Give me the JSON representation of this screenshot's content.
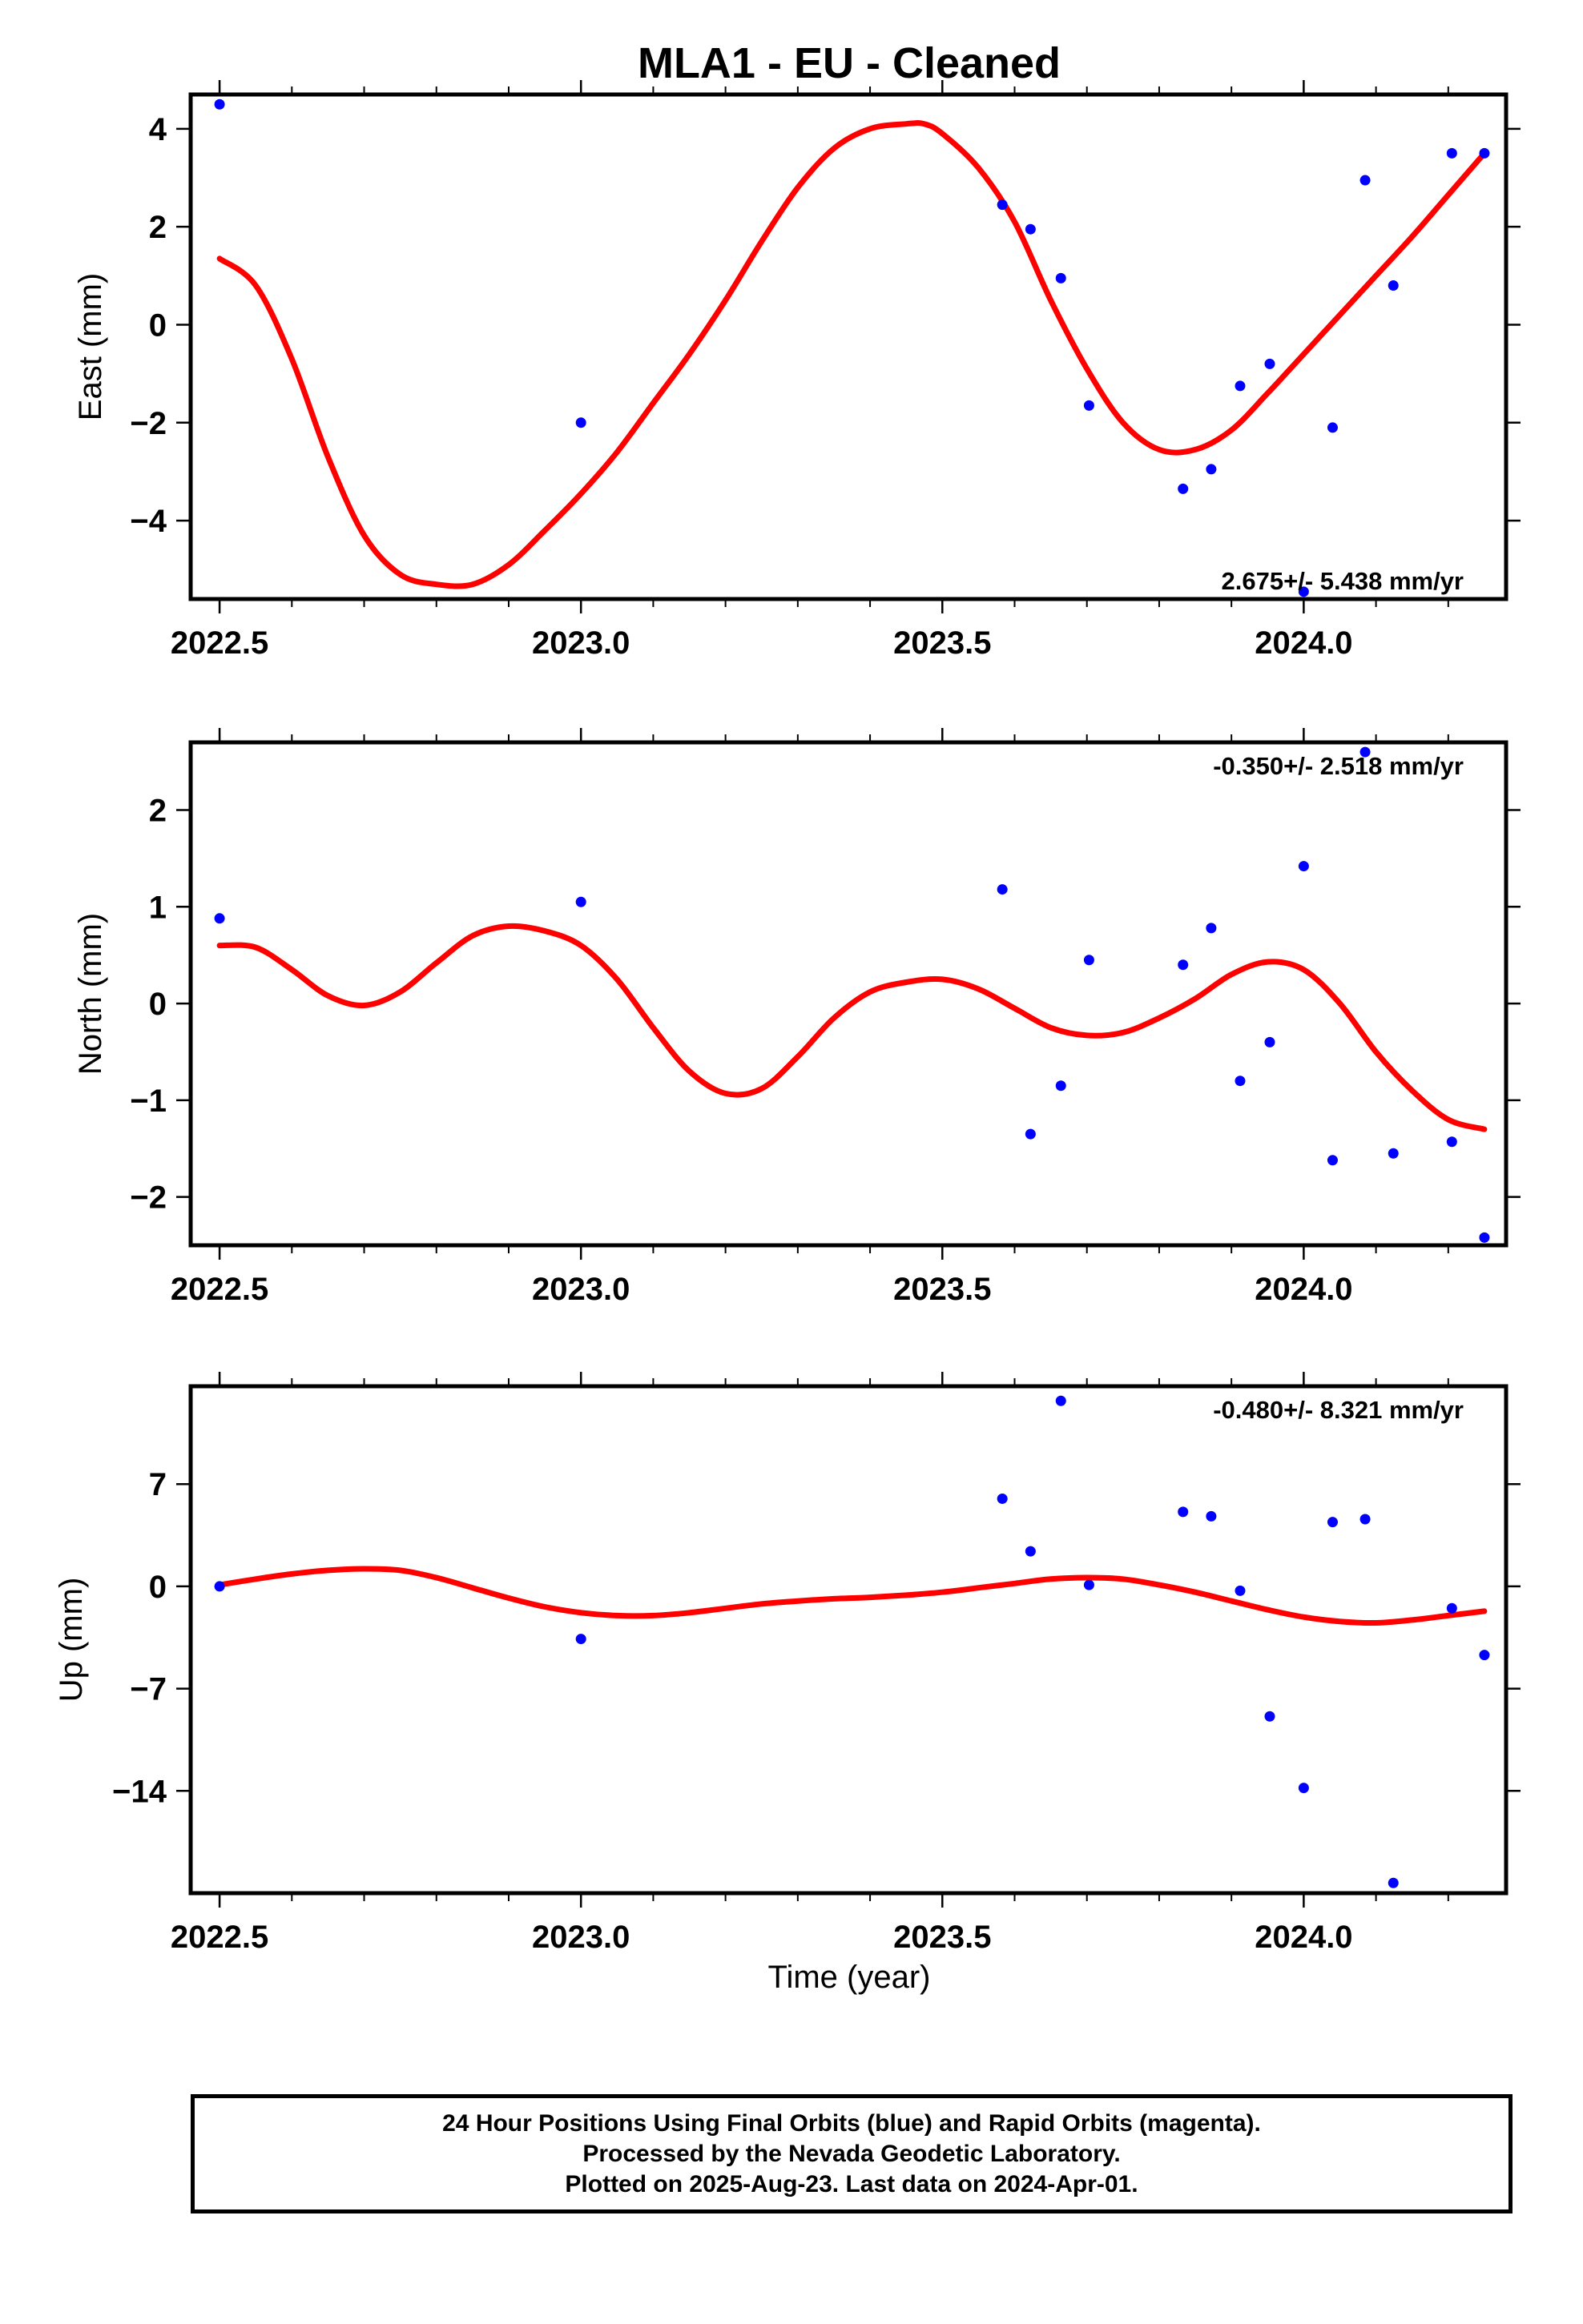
{
  "title": "MLA1  - EU - Cleaned",
  "xlabel": "Time (year)",
  "footer": {
    "lines": [
      "24 Hour Positions Using Final Orbits (blue) and Rapid Orbits (magenta).",
      "Processed by the Nevada Geodetic Laboratory.",
      "Plotted on 2025-Aug-23. Last data on 2024-Apr-01."
    ]
  },
  "colors": {
    "points": "#0000ff",
    "fit": "#ff0000",
    "frame": "#000000"
  },
  "chart_data": [
    {
      "type": "scatter",
      "name": "east",
      "ylabel": "East (mm)",
      "rate_text": "2.675+/- 5.438 mm/yr",
      "rate_position": "bottom-right",
      "xlim": [
        2022.46,
        2024.28
      ],
      "ylim": [
        -5.6,
        4.7
      ],
      "xticks": [
        2022.5,
        2023.0,
        2023.5,
        2024.0
      ],
      "xtick_labels": [
        "2022.5",
        "2023.0",
        "2023.5",
        "2024.0"
      ],
      "yticks": [
        4,
        2,
        0,
        -2,
        -4
      ],
      "ytick_labels": [
        "4",
        "2",
        "0",
        "−2",
        "−4"
      ],
      "grid": false,
      "points": {
        "x": [
          2022.5,
          2023.0,
          2023.583,
          2023.622,
          2023.664,
          2023.703,
          2023.833,
          2023.872,
          2023.912,
          2023.953,
          2024.0,
          2024.04,
          2024.085,
          2024.124,
          2024.205,
          2024.25
        ],
        "y": [
          4.5,
          -2.0,
          2.45,
          1.95,
          0.95,
          -1.65,
          -3.35,
          -2.95,
          -1.25,
          -0.8,
          -5.45,
          -2.1,
          2.95,
          0.8,
          3.5,
          3.5
        ]
      },
      "fit": {
        "x": [
          2022.5,
          2022.55,
          2022.6,
          2022.65,
          2022.7,
          2022.75,
          2022.8,
          2022.85,
          2022.9,
          2022.95,
          2023.0,
          2023.05,
          2023.1,
          2023.15,
          2023.2,
          2023.25,
          2023.3,
          2023.35,
          2023.4,
          2023.45,
          2023.475,
          2023.5,
          2023.55,
          2023.6,
          2023.65,
          2023.7,
          2023.75,
          2023.8,
          2023.85,
          2023.9,
          2023.95,
          2024.0,
          2024.05,
          2024.1,
          2024.15,
          2024.2,
          2024.25
        ],
        "y": [
          1.35,
          0.8,
          -0.7,
          -2.7,
          -4.3,
          -5.1,
          -5.3,
          -5.3,
          -4.9,
          -4.2,
          -3.45,
          -2.6,
          -1.6,
          -0.6,
          0.5,
          1.7,
          2.8,
          3.6,
          4.0,
          4.1,
          4.1,
          3.9,
          3.2,
          2.1,
          0.5,
          -0.9,
          -2.0,
          -2.55,
          -2.55,
          -2.15,
          -1.4,
          -0.6,
          0.2,
          1.0,
          1.8,
          2.65,
          3.5
        ]
      }
    },
    {
      "type": "scatter",
      "name": "north",
      "ylabel": "North (mm)",
      "rate_text": "-0.350+/- 2.518 mm/yr",
      "rate_position": "top-right",
      "xlim": [
        2022.46,
        2024.28
      ],
      "ylim": [
        -2.5,
        2.7
      ],
      "xticks": [
        2022.5,
        2023.0,
        2023.5,
        2024.0
      ],
      "xtick_labels": [
        "2022.5",
        "2023.0",
        "2023.5",
        "2024.0"
      ],
      "yticks": [
        2,
        1,
        0,
        -1,
        -2
      ],
      "ytick_labels": [
        "2",
        "1",
        "0",
        "−1",
        "−2"
      ],
      "grid": false,
      "points": {
        "x": [
          2022.5,
          2023.0,
          2023.583,
          2023.622,
          2023.664,
          2023.703,
          2023.833,
          2023.872,
          2023.912,
          2023.953,
          2024.0,
          2024.04,
          2024.085,
          2024.124,
          2024.205,
          2024.25
        ],
        "y": [
          0.88,
          1.05,
          1.18,
          -1.35,
          -0.85,
          0.45,
          0.4,
          0.78,
          -0.8,
          -0.4,
          1.42,
          -1.62,
          2.6,
          -1.55,
          -1.43,
          -2.42
        ]
      },
      "fit": {
        "x": [
          2022.5,
          2022.55,
          2022.6,
          2022.65,
          2022.7,
          2022.75,
          2022.8,
          2022.85,
          2022.9,
          2022.95,
          2023.0,
          2023.05,
          2023.1,
          2023.15,
          2023.2,
          2023.25,
          2023.3,
          2023.35,
          2023.4,
          2023.45,
          2023.5,
          2023.55,
          2023.6,
          2023.65,
          2023.7,
          2023.75,
          2023.8,
          2023.85,
          2023.9,
          2023.95,
          2024.0,
          2024.05,
          2024.1,
          2024.15,
          2024.2,
          2024.25
        ],
        "y": [
          0.6,
          0.58,
          0.35,
          0.08,
          -0.02,
          0.12,
          0.42,
          0.7,
          0.8,
          0.75,
          0.6,
          0.25,
          -0.25,
          -0.7,
          -0.93,
          -0.88,
          -0.55,
          -0.15,
          0.12,
          0.22,
          0.25,
          0.15,
          -0.05,
          -0.25,
          -0.33,
          -0.3,
          -0.15,
          0.05,
          0.3,
          0.43,
          0.35,
          0.0,
          -0.5,
          -0.9,
          -1.2,
          -1.3
        ]
      }
    },
    {
      "type": "scatter",
      "name": "up",
      "ylabel": "Up (mm)",
      "rate_text": "-0.480+/- 8.321 mm/yr",
      "rate_position": "top-right",
      "xlim": [
        2022.46,
        2024.28
      ],
      "ylim": [
        -21,
        13.7
      ],
      "xticks": [
        2022.5,
        2023.0,
        2023.5,
        2024.0
      ],
      "xtick_labels": [
        "2022.5",
        "2023.0",
        "2023.5",
        "2024.0"
      ],
      "yticks": [
        7,
        0,
        -7,
        -14
      ],
      "ytick_labels": [
        "7",
        "0",
        "−7",
        "−14"
      ],
      "grid": false,
      "points": {
        "x": [
          2022.5,
          2023.0,
          2023.583,
          2023.622,
          2023.664,
          2023.703,
          2023.833,
          2023.872,
          2023.912,
          2023.953,
          2024.0,
          2024.04,
          2024.085,
          2024.124,
          2024.205,
          2024.25
        ],
        "y": [
          0.0,
          -3.6,
          6.0,
          2.4,
          12.7,
          0.1,
          5.1,
          4.8,
          -0.3,
          -8.9,
          -13.8,
          4.4,
          4.6,
          -20.3,
          -1.5,
          -4.7
        ]
      },
      "fit": {
        "x": [
          2022.5,
          2022.55,
          2022.6,
          2022.65,
          2022.7,
          2022.75,
          2022.8,
          2022.85,
          2022.9,
          2022.95,
          2023.0,
          2023.05,
          2023.1,
          2023.15,
          2023.2,
          2023.25,
          2023.3,
          2023.35,
          2023.4,
          2023.45,
          2023.5,
          2023.55,
          2023.6,
          2023.65,
          2023.7,
          2023.75,
          2023.8,
          2023.85,
          2023.9,
          2023.95,
          2024.0,
          2024.05,
          2024.1,
          2024.15,
          2024.2,
          2024.25
        ],
        "y": [
          0.1,
          0.5,
          0.85,
          1.1,
          1.2,
          1.1,
          0.6,
          -0.1,
          -0.8,
          -1.4,
          -1.8,
          -2.0,
          -2.0,
          -1.8,
          -1.5,
          -1.2,
          -1.0,
          -0.85,
          -0.75,
          -0.6,
          -0.4,
          -0.1,
          0.2,
          0.5,
          0.6,
          0.5,
          0.1,
          -0.4,
          -1.0,
          -1.6,
          -2.1,
          -2.4,
          -2.5,
          -2.3,
          -2.0,
          -1.7
        ]
      }
    }
  ]
}
